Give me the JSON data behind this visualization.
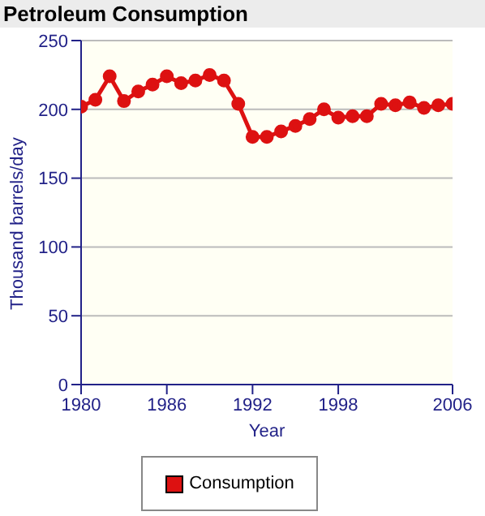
{
  "chart_data": {
    "type": "line",
    "title": "Petroleum Consumption",
    "xlabel": "Year",
    "ylabel": "Thousand barrels/day",
    "x": [
      1980,
      1981,
      1982,
      1983,
      1984,
      1985,
      1986,
      1987,
      1988,
      1989,
      1990,
      1991,
      1992,
      1993,
      1994,
      1995,
      1996,
      1997,
      1998,
      1999,
      2000,
      2001,
      2002,
      2003,
      2004,
      2005,
      2006
    ],
    "series": [
      {
        "name": "Consumption",
        "color": "#dd1111",
        "values": [
          202,
          207,
          224,
          206,
          213,
          218,
          224,
          219,
          221,
          225,
          221,
          204,
          180,
          180,
          184,
          188,
          193,
          200,
          194,
          195,
          195,
          204,
          203,
          205,
          201,
          203,
          204
        ]
      }
    ],
    "xlim": [
      1980,
      2006
    ],
    "xticks": [
      1980,
      1986,
      1992,
      1998,
      2006
    ],
    "ylim": [
      0,
      250
    ],
    "yticks": [
      0,
      50,
      100,
      150,
      200,
      250
    ],
    "grid": "y",
    "legend": "bottom",
    "marker": "circle",
    "line_style": "solid"
  }
}
